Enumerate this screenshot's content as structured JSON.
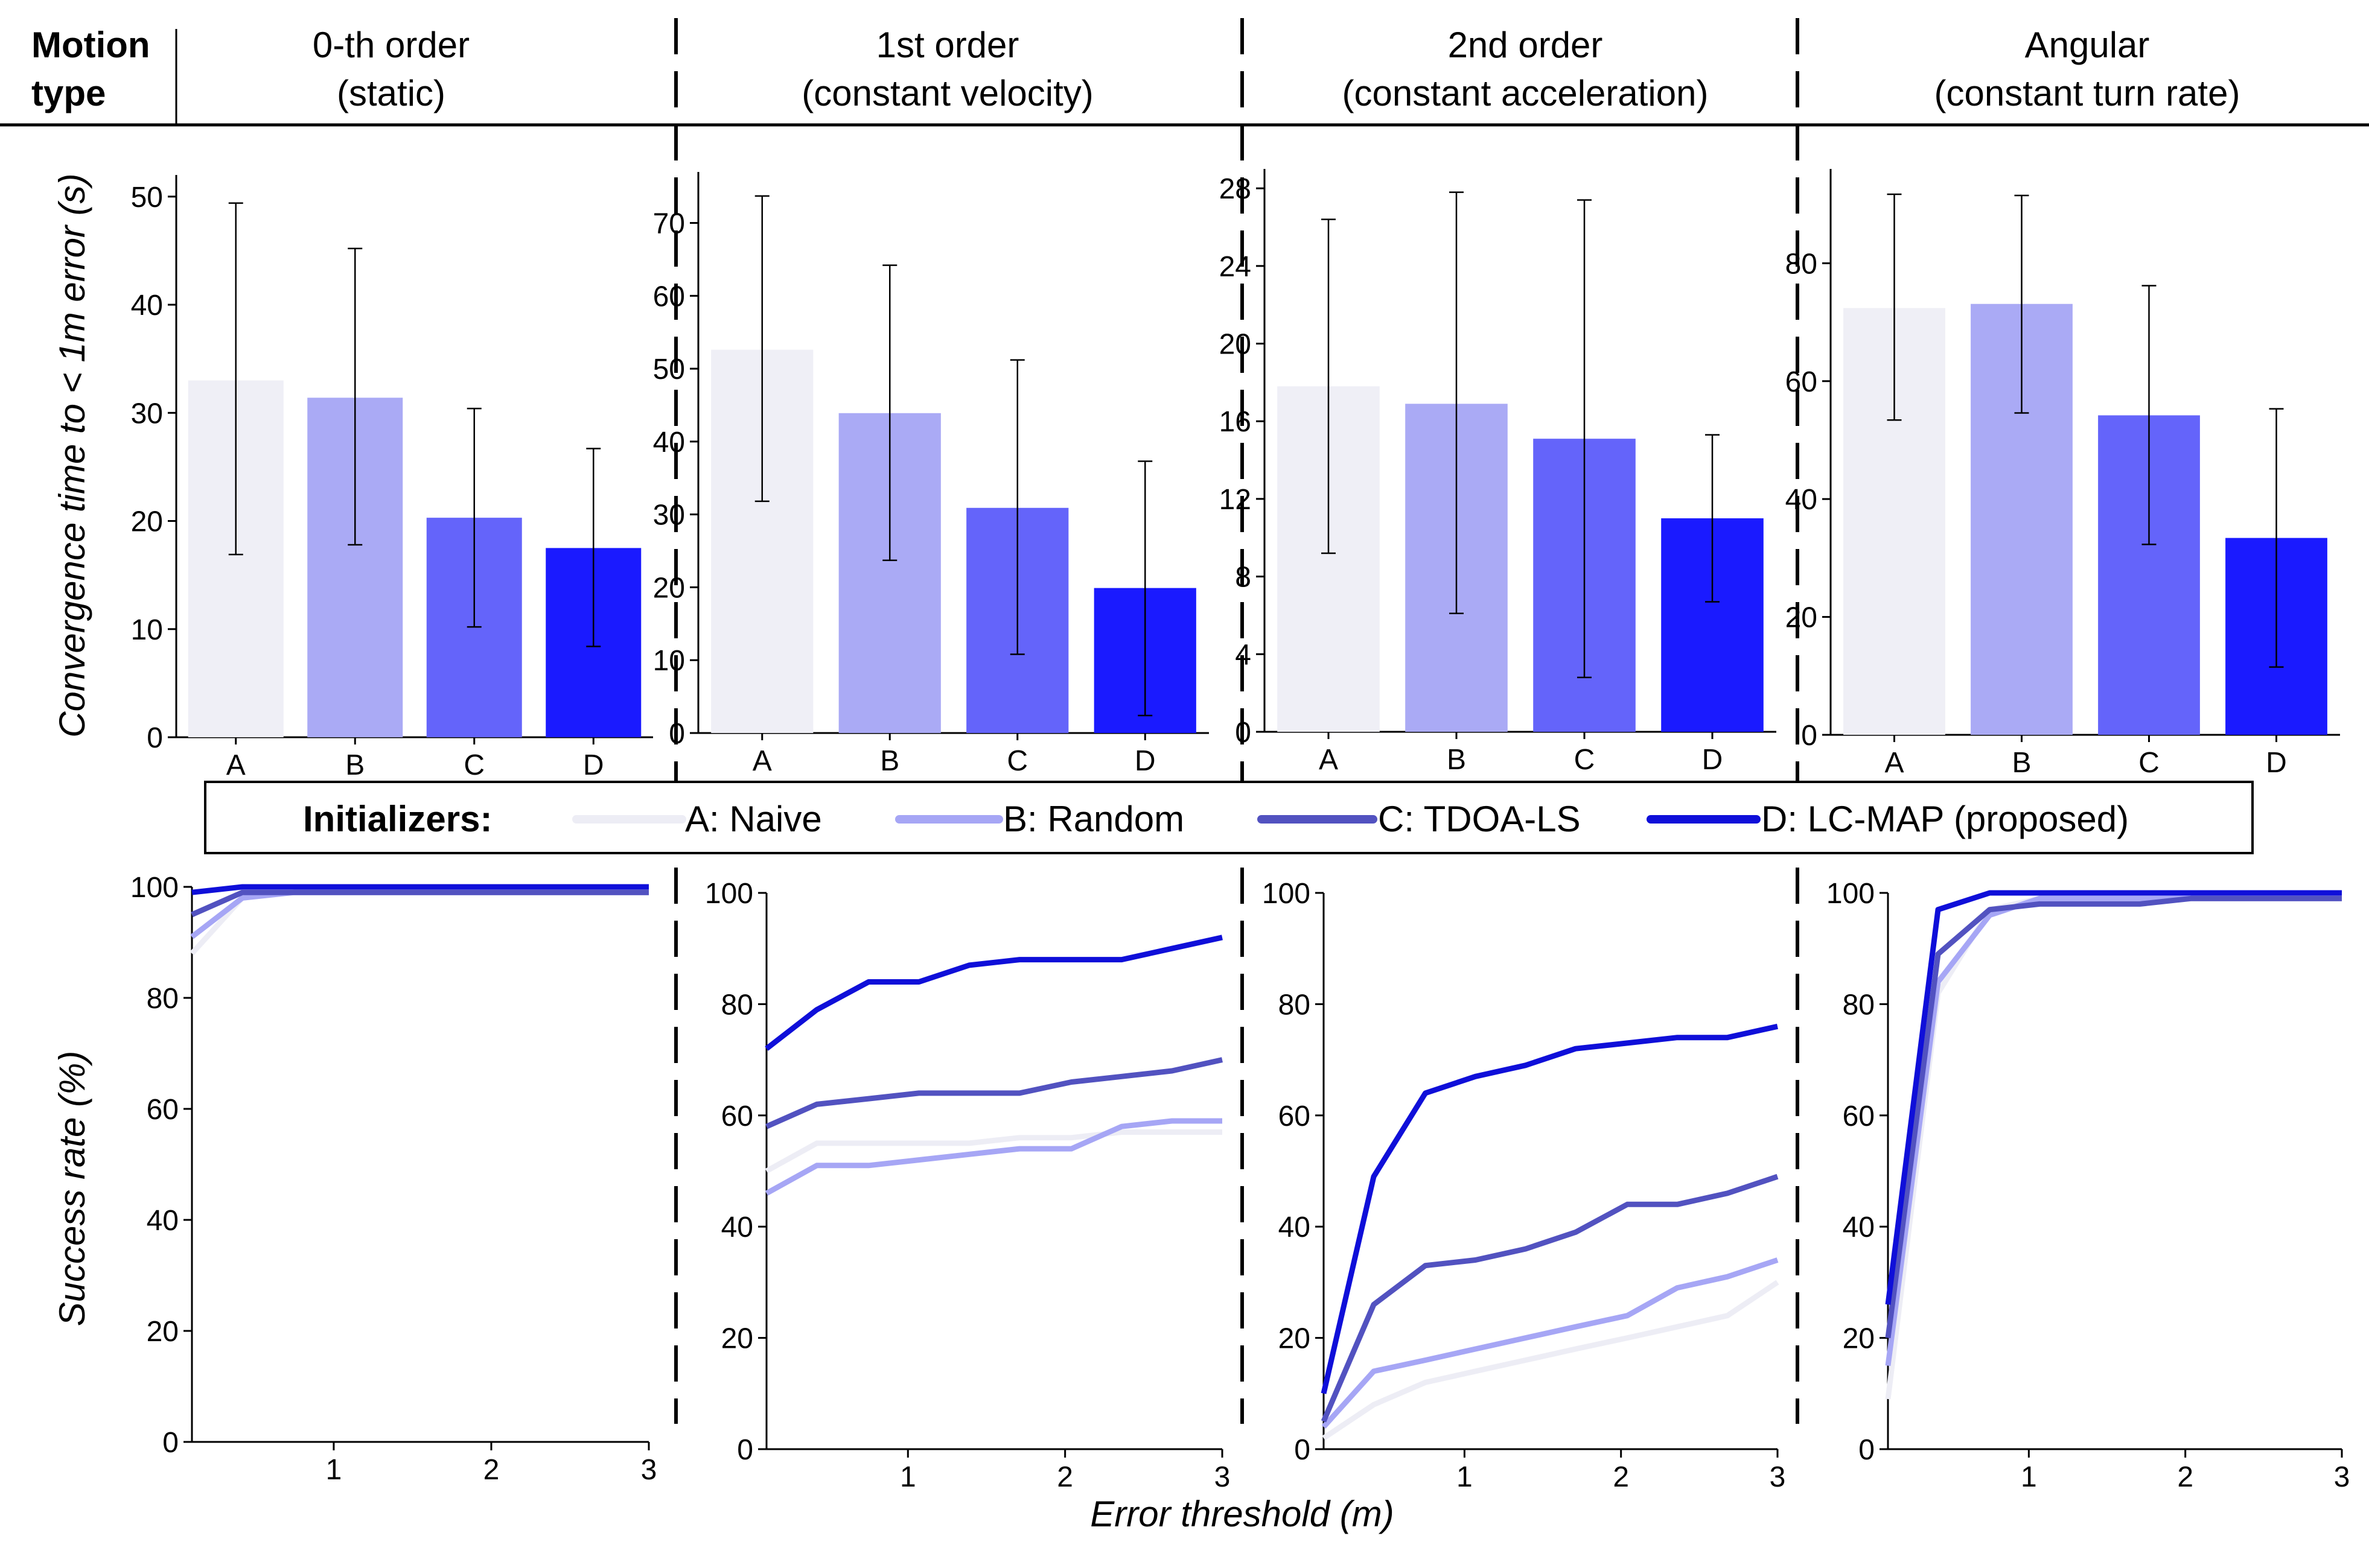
{
  "header": {
    "motion_type": [
      "Motion",
      "type"
    ],
    "columns": [
      {
        "line1": "0-th order",
        "line2": "(static)"
      },
      {
        "line1": "1st order",
        "line2": "(constant velocity)"
      },
      {
        "line1": "2nd order",
        "line2": "(constant acceleration)"
      },
      {
        "line1": "Angular",
        "line2": "(constant turn rate)"
      }
    ]
  },
  "axes": {
    "bar_ylabel": "Convergence time to < 1m error (s)",
    "line_ylabel": "Success rate (%)",
    "line_xlabel": "Error threshold (m)"
  },
  "legend": {
    "title": "Initializers:",
    "items": [
      {
        "label": "A: Naive",
        "color": "#ededf5"
      },
      {
        "label": "B: Random",
        "color": "#a6a6f5"
      },
      {
        "label": "C: TDOA-LS",
        "color": "#5252c0"
      },
      {
        "label": "D: LC-MAP (proposed)",
        "color": "#0f0fd9"
      }
    ]
  },
  "chart_data": [
    {
      "type": "bar",
      "panel": "0-th order (static)",
      "categories": [
        "A",
        "B",
        "C",
        "D"
      ],
      "values": [
        33.0,
        31.4,
        20.3,
        17.5
      ],
      "err_low": [
        16.9,
        17.8,
        10.2,
        8.4
      ],
      "err_high": [
        49.4,
        45.2,
        30.4,
        26.7
      ],
      "colors": [
        "#efeff6",
        "#aaaaf5",
        "#6464fa",
        "#1a1aff"
      ],
      "ylim": [
        0,
        52
      ],
      "yticks": [
        0,
        10,
        20,
        30,
        40,
        50
      ]
    },
    {
      "type": "bar",
      "panel": "1st order (constant velocity)",
      "categories": [
        "A",
        "B",
        "C",
        "D"
      ],
      "values": [
        52.6,
        43.9,
        30.9,
        19.9
      ],
      "err_low": [
        31.8,
        23.7,
        10.8,
        2.4
      ],
      "err_high": [
        73.7,
        64.2,
        51.2,
        37.3
      ],
      "colors": [
        "#efeff6",
        "#aaaaf5",
        "#6464fa",
        "#1a1aff"
      ],
      "ylim": [
        0,
        77
      ],
      "yticks": [
        0,
        10,
        20,
        30,
        40,
        50,
        60,
        70
      ]
    },
    {
      "type": "bar",
      "panel": "2nd order (constant acceleration)",
      "categories": [
        "A",
        "B",
        "C",
        "D"
      ],
      "values": [
        17.8,
        16.9,
        15.1,
        11.0
      ],
      "err_low": [
        9.2,
        6.1,
        2.8,
        6.7
      ],
      "err_high": [
        26.4,
        27.8,
        27.4,
        15.3
      ],
      "colors": [
        "#efeff6",
        "#aaaaf5",
        "#6464fa",
        "#1a1aff"
      ],
      "ylim": [
        0,
        29
      ],
      "yticks": [
        0,
        4,
        8,
        12,
        16,
        20,
        24,
        28
      ]
    },
    {
      "type": "bar",
      "panel": "Angular (constant turn rate)",
      "categories": [
        "A",
        "B",
        "C",
        "D"
      ],
      "values": [
        72.4,
        73.1,
        54.2,
        33.4
      ],
      "err_low": [
        53.4,
        54.6,
        32.3,
        11.5
      ],
      "err_high": [
        91.7,
        91.5,
        76.2,
        55.3
      ],
      "colors": [
        "#efeff6",
        "#aaaaf5",
        "#6464fa",
        "#1a1aff"
      ],
      "ylim": [
        0,
        96
      ],
      "yticks": [
        0,
        20,
        40,
        60,
        80
      ]
    },
    {
      "type": "line",
      "panel": "0-th order (static)",
      "x": [
        0.1,
        0.42,
        0.75,
        1.07,
        1.39,
        1.71,
        2.04,
        2.36,
        2.68,
        3.0
      ],
      "xlim": [
        0.1,
        3.0
      ],
      "xticks": [
        1,
        2,
        3
      ],
      "ylim": [
        0,
        100
      ],
      "yticks": [
        0,
        20,
        40,
        60,
        80,
        100
      ],
      "series": [
        {
          "name": "A: Naive",
          "color": "#ededf5",
          "values": [
            88,
            98,
            99,
            99,
            99,
            99,
            99,
            99,
            99,
            99
          ]
        },
        {
          "name": "B: Random",
          "color": "#a6a6f5",
          "values": [
            91,
            98,
            99,
            99,
            99,
            99,
            99,
            99,
            99,
            99
          ]
        },
        {
          "name": "C: TDOA-LS",
          "color": "#5252c0",
          "values": [
            95,
            99,
            99,
            99,
            99,
            99,
            99,
            99,
            99,
            99
          ]
        },
        {
          "name": "D: LC-MAP (proposed)",
          "color": "#0f0fd9",
          "values": [
            99,
            100,
            100,
            100,
            100,
            100,
            100,
            100,
            100,
            100
          ]
        }
      ]
    },
    {
      "type": "line",
      "panel": "1st order (constant velocity)",
      "x": [
        0.1,
        0.42,
        0.75,
        1.07,
        1.39,
        1.71,
        2.04,
        2.36,
        2.68,
        3.0
      ],
      "xlim": [
        0.1,
        3.0
      ],
      "xticks": [
        1,
        2,
        3
      ],
      "ylim": [
        0,
        100
      ],
      "yticks": [
        0,
        20,
        40,
        60,
        80,
        100
      ],
      "series": [
        {
          "name": "A: Naive",
          "color": "#ededf5",
          "values": [
            50,
            55,
            55,
            55,
            55,
            56,
            56,
            57,
            57,
            57
          ]
        },
        {
          "name": "B: Random",
          "color": "#a6a6f5",
          "values": [
            46,
            51,
            51,
            52,
            53,
            54,
            54,
            58,
            59,
            59
          ]
        },
        {
          "name": "C: TDOA-LS",
          "color": "#5252c0",
          "values": [
            58,
            62,
            63,
            64,
            64,
            64,
            66,
            67,
            68,
            70
          ]
        },
        {
          "name": "D: LC-MAP (proposed)",
          "color": "#0f0fd9",
          "values": [
            72,
            79,
            84,
            84,
            87,
            88,
            88,
            88,
            90,
            92
          ]
        }
      ]
    },
    {
      "type": "line",
      "panel": "2nd order (constant acceleration)",
      "x": [
        0.1,
        0.42,
        0.75,
        1.07,
        1.39,
        1.71,
        2.04,
        2.36,
        2.68,
        3.0
      ],
      "xlim": [
        0.1,
        3.0
      ],
      "xticks": [
        1,
        2,
        3
      ],
      "ylim": [
        0,
        100
      ],
      "yticks": [
        0,
        20,
        40,
        60,
        80,
        100
      ],
      "series": [
        {
          "name": "A: Naive",
          "color": "#ededf5",
          "values": [
            2,
            8,
            12,
            14,
            16,
            18,
            20,
            22,
            24,
            30
          ]
        },
        {
          "name": "B: Random",
          "color": "#a6a6f5",
          "values": [
            4,
            14,
            16,
            18,
            20,
            22,
            24,
            29,
            31,
            34
          ]
        },
        {
          "name": "C: TDOA-LS",
          "color": "#5252c0",
          "values": [
            5,
            26,
            33,
            34,
            36,
            39,
            44,
            44,
            46,
            49
          ]
        },
        {
          "name": "D: LC-MAP (proposed)",
          "color": "#0f0fd9",
          "values": [
            10,
            49,
            64,
            67,
            69,
            72,
            73,
            74,
            74,
            76
          ]
        }
      ]
    },
    {
      "type": "line",
      "panel": "Angular (constant turn rate)",
      "x": [
        0.1,
        0.42,
        0.75,
        1.07,
        1.39,
        1.71,
        2.04,
        2.36,
        2.68,
        3.0
      ],
      "xlim": [
        0.1,
        3.0
      ],
      "xticks": [
        1,
        2,
        3
      ],
      "ylim": [
        0,
        100
      ],
      "yticks": [
        0,
        20,
        40,
        60,
        80,
        100
      ],
      "series": [
        {
          "name": "A: Naive",
          "color": "#ededf5",
          "values": [
            9,
            82,
            97,
            99,
            99,
            99,
            99,
            99,
            99,
            99
          ]
        },
        {
          "name": "B: Random",
          "color": "#a6a6f5",
          "values": [
            15,
            84,
            96,
            99,
            99,
            99,
            99,
            99,
            99,
            99
          ]
        },
        {
          "name": "C: TDOA-LS",
          "color": "#5252c0",
          "values": [
            20,
            89,
            97,
            98,
            98,
            98,
            99,
            99,
            99,
            99
          ]
        },
        {
          "name": "D: LC-MAP (proposed)",
          "color": "#0f0fd9",
          "values": [
            26,
            97,
            100,
            100,
            100,
            100,
            100,
            100,
            100,
            100
          ]
        }
      ]
    }
  ]
}
